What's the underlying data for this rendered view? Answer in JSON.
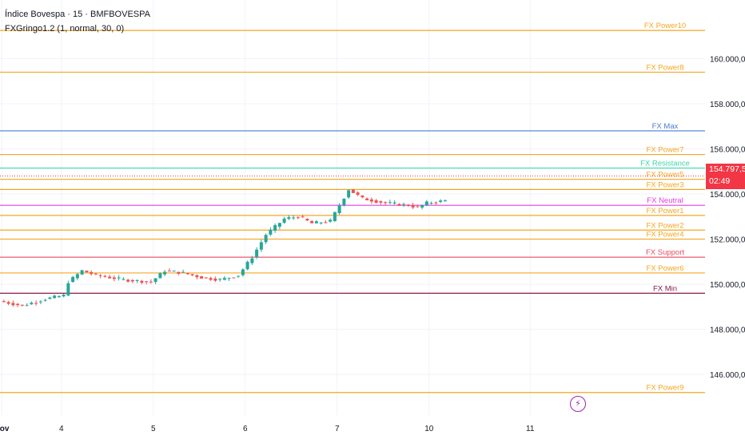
{
  "header": {
    "symbol_line": "Índice Bovespa · 15 · BMFBOVESPA",
    "indicator_line": "FXGringo1.2 (1, normal, 30, 0)"
  },
  "price_tag": {
    "price": "154.797,58",
    "countdown": "02:49",
    "color": "#f23645"
  },
  "icons": {
    "event": "lightning-icon"
  },
  "colors": {
    "up": "#26a69a",
    "down": "#ef5350",
    "grid": "#f0f3fa",
    "axis_text": "#131722"
  },
  "chart_data": {
    "type": "candlestick",
    "y_axis": {
      "ticks": [
        146000,
        148000,
        150000,
        152000,
        154000,
        156000,
        158000,
        160000
      ],
      "tick_labels": [
        "146.000,00",
        "148.000,00",
        "150.000,00",
        "152.000,00",
        "154.000,00",
        "156.000,00",
        "158.000,00",
        "160.000,00"
      ],
      "ylim": [
        144200,
        162600
      ],
      "position": "right"
    },
    "x_axis": {
      "tick_labels": [
        "Nov",
        "4",
        "5",
        "6",
        "7",
        "10",
        "11"
      ],
      "bold": [
        "Nov"
      ]
    },
    "last_price": 154797.58,
    "levels": [
      {
        "name": "FX Power10",
        "value": 161250,
        "color": "#f5a623"
      },
      {
        "name": "FX Power8",
        "value": 159400,
        "color": "#f5a623"
      },
      {
        "name": "FX Max",
        "value": 156800,
        "color": "#4a7bd1"
      },
      {
        "name": "FX Power7",
        "value": 155750,
        "color": "#f5a623"
      },
      {
        "name": "FX Resistance",
        "value": 155150,
        "color": "#3dd6a8"
      },
      {
        "name": "FX Power5",
        "value": 154650,
        "color": "#f5a623"
      },
      {
        "name": "FX Power3",
        "value": 154200,
        "color": "#f5a623"
      },
      {
        "name": "FX Neutral",
        "value": 153500,
        "color": "#e040e0"
      },
      {
        "name": "FX Power1",
        "value": 153050,
        "color": "#f5a623"
      },
      {
        "name": "FX Power2",
        "value": 152400,
        "color": "#f5a623"
      },
      {
        "name": "FX Power4",
        "value": 152000,
        "color": "#f5a623"
      },
      {
        "name": "FX Support",
        "value": 151200,
        "color": "#e84a5f"
      },
      {
        "name": "FX Power6",
        "value": 150500,
        "color": "#f5a623"
      },
      {
        "name": "FX Min",
        "value": 149600,
        "color": "#8b1a4a"
      },
      {
        "name": "FX Power9",
        "value": 145200,
        "color": "#f5a623"
      }
    ],
    "sessions": [
      {
        "label": "Nov",
        "bars": 13,
        "start": 149000,
        "end": 150300
      },
      {
        "label": "4",
        "bars": 20,
        "start": 150300,
        "end": 150200
      },
      {
        "label": "5",
        "bars": 20,
        "start": 150300,
        "end": 152300
      },
      {
        "label": "6",
        "bars": 20,
        "start": 153800,
        "end": 153700
      },
      {
        "label": "7",
        "bars": 20,
        "start": 153500,
        "end": 153100
      },
      {
        "label": "10",
        "bars": 4,
        "start": 153800,
        "end": 154800
      }
    ],
    "path": [
      [
        0,
        149250
      ],
      [
        5,
        149050
      ],
      [
        10,
        149350
      ],
      [
        14,
        149500
      ],
      [
        15,
        150100
      ],
      [
        18,
        150600
      ],
      [
        21,
        150400
      ],
      [
        27,
        150200
      ],
      [
        33,
        150100
      ],
      [
        36,
        150600
      ],
      [
        40,
        150500
      ],
      [
        44,
        150300
      ],
      [
        48,
        150200
      ],
      [
        52,
        150400
      ],
      [
        55,
        151200
      ],
      [
        58,
        152200
      ],
      [
        62,
        152900
      ],
      [
        65,
        153000
      ],
      [
        68,
        152700
      ],
      [
        72,
        152800
      ],
      [
        74,
        153500
      ],
      [
        76,
        154200
      ],
      [
        79,
        153800
      ],
      [
        84,
        153600
      ],
      [
        89,
        153500
      ],
      [
        91,
        153400
      ],
      [
        93,
        153600
      ],
      [
        97,
        153700
      ],
      [
        100,
        153300
      ],
      [
        103,
        152800
      ],
      [
        106,
        152900
      ],
      [
        109,
        153100
      ],
      [
        112,
        153500
      ],
      [
        114,
        154000
      ],
      [
        116,
        155500
      ],
      [
        118,
        155700
      ],
      [
        120,
        155250
      ],
      [
        121,
        154800
      ]
    ]
  }
}
